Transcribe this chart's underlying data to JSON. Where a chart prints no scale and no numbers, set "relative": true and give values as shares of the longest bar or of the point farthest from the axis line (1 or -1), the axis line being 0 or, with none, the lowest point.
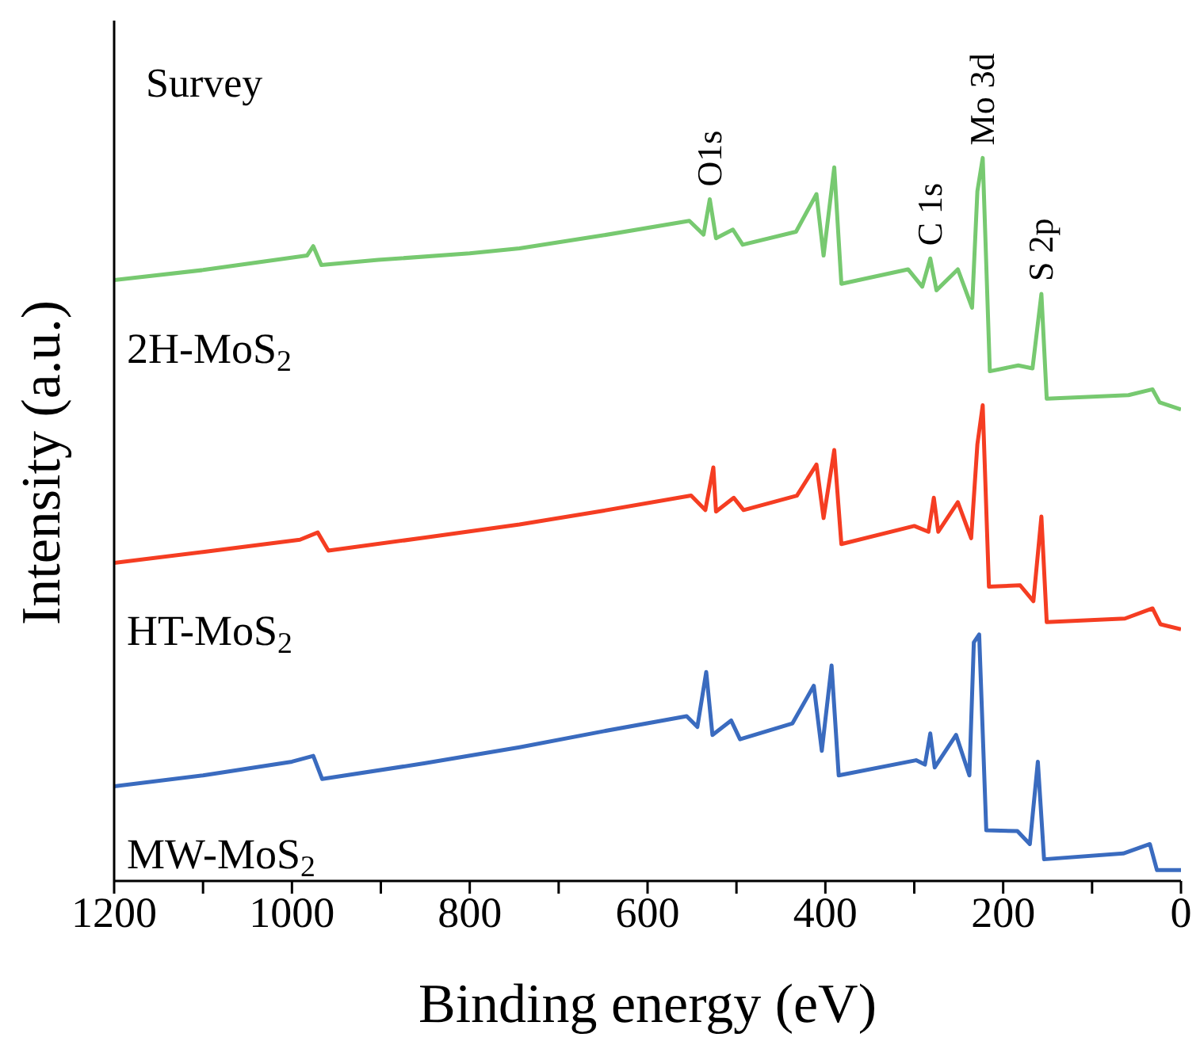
{
  "chart_data": {
    "type": "line",
    "relative": true,
    "xlabel": "Binding energy (eV)",
    "ylabel": "Intensity (a.u.)",
    "xlim": [
      1200,
      0
    ],
    "xticks": [
      0,
      {
        "value": 100,
        "label": null
      },
      200,
      {
        "value": 300,
        "label": null
      },
      400,
      {
        "value": 500,
        "label": null
      },
      600,
      {
        "value": 700,
        "label": null
      },
      800,
      {
        "value": 900,
        "label": null
      },
      1000,
      {
        "value": 1100,
        "label": null
      },
      1200
    ],
    "legend": false,
    "grid": false,
    "marker": "none",
    "line_style": "solid",
    "annotations": [
      "Survey",
      {
        "text": "O1s",
        "x": 530,
        "y": 0.943
      },
      {
        "text": "C 1s",
        "x": 282,
        "y": 0.861
      },
      {
        "text": "Mo 3d",
        "x": 223,
        "y": 1.0
      },
      {
        "text": "S 2p",
        "x": 157,
        "y": 0.812
      }
    ],
    "series": [
      {
        "name": "2H-MoS$_{2}$",
        "color": "#77c970",
        "x": [
          1200,
          1100,
          983,
          976,
          967,
          903,
          800,
          744,
          650,
          553,
          537,
          530,
          523,
          504,
          493,
          433,
          410,
          402,
          390,
          382,
          307,
          291,
          282,
          275,
          251,
          235,
          229,
          223,
          215,
          183,
          167,
          157,
          151,
          59,
          32,
          24,
          0
        ],
        "values": [
          0.831,
          0.845,
          0.865,
          0.878,
          0.852,
          0.859,
          0.868,
          0.875,
          0.893,
          0.913,
          0.894,
          0.943,
          0.889,
          0.901,
          0.88,
          0.898,
          0.95,
          0.865,
          0.987,
          0.826,
          0.846,
          0.822,
          0.861,
          0.817,
          0.846,
          0.793,
          0.954,
          1.0,
          0.705,
          0.713,
          0.709,
          0.812,
          0.667,
          0.672,
          0.68,
          0.662,
          0.652
        ]
      },
      {
        "name": "HT-MoS$_{2}$",
        "color": "#f53d22",
        "x": [
          1200,
          1100,
          991,
          971,
          959,
          850,
          744,
          650,
          551,
          535,
          526,
          523,
          503,
          492,
          432,
          410,
          402,
          390,
          382,
          300,
          284,
          278,
          273,
          251,
          236,
          229,
          223,
          216,
          181,
          166,
          157,
          151,
          63,
          32,
          23,
          0
        ],
        "values": [
          0.44,
          0.455,
          0.472,
          0.482,
          0.457,
          0.475,
          0.493,
          0.512,
          0.533,
          0.513,
          0.572,
          0.511,
          0.53,
          0.513,
          0.533,
          0.576,
          0.502,
          0.596,
          0.466,
          0.491,
          0.483,
          0.53,
          0.483,
          0.524,
          0.474,
          0.604,
          0.658,
          0.407,
          0.409,
          0.387,
          0.504,
          0.358,
          0.363,
          0.377,
          0.355,
          0.348
        ]
      },
      {
        "name": "MW-MoS$_{2}$",
        "color": "#3a6bbf",
        "x": [
          1200,
          1100,
          1000,
          976,
          966,
          850,
          744,
          650,
          556,
          544,
          534,
          527,
          506,
          496,
          437,
          413,
          404,
          393,
          385,
          298,
          288,
          282,
          277,
          253,
          238,
          233,
          227,
          219,
          184,
          170,
          161,
          154,
          65,
          35,
          27,
          0
        ],
        "values": [
          0.131,
          0.146,
          0.165,
          0.173,
          0.141,
          0.163,
          0.185,
          0.207,
          0.228,
          0.213,
          0.289,
          0.202,
          0.222,
          0.196,
          0.218,
          0.27,
          0.18,
          0.298,
          0.146,
          0.167,
          0.161,
          0.204,
          0.157,
          0.202,
          0.146,
          0.33,
          0.341,
          0.07,
          0.069,
          0.051,
          0.165,
          0.03,
          0.038,
          0.051,
          0.015,
          0.015
        ]
      }
    ]
  }
}
